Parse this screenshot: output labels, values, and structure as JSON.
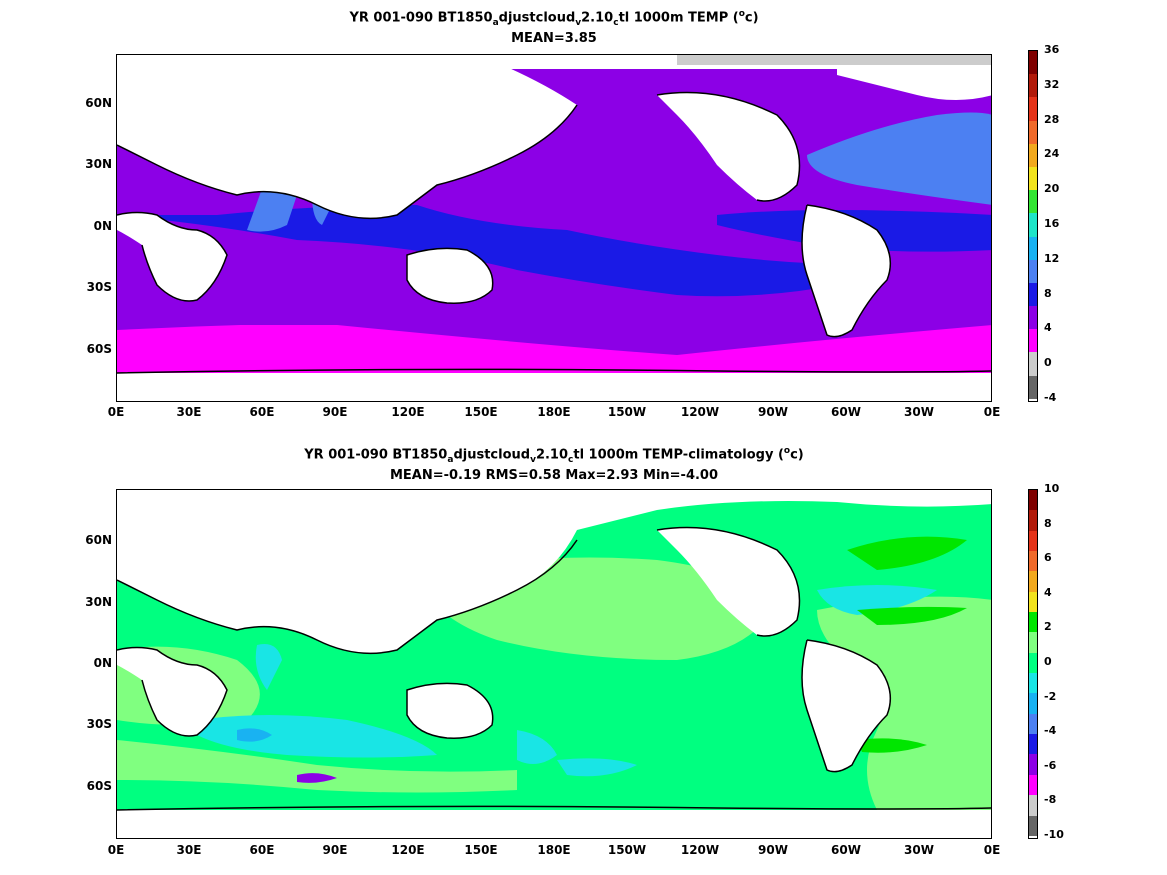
{
  "panel1": {
    "title": "YR 001-090 BT1850",
    "title_sub1": "a",
    "title_mid1": "djustcloud",
    "title_sub2": "v",
    "title_mid2": "2.10",
    "title_sub3": "c",
    "title_rest": "tl 1000m TEMP (",
    "title_sup": "o",
    "title_end": "c)",
    "stats": "MEAN=3.85",
    "colorbar_labels": [
      "36",
      "32",
      "28",
      "24",
      "20",
      "16",
      "12",
      "8",
      "4",
      "0",
      "-4"
    ],
    "colorbar_colors": [
      "#7f0000",
      "#b21a0a",
      "#e53319",
      "#f06a2a",
      "#f2a91e",
      "#f2e31e",
      "#33e533",
      "#1ee5c8",
      "#19b2f2",
      "#4c80f2",
      "#1a1ae6",
      "#8c00e6",
      "#ff00ff",
      "#cccccc",
      "#666666"
    ]
  },
  "panel2": {
    "title": "YR 001-090 BT1850",
    "title_sub1": "a",
    "title_mid1": "djustcloud",
    "title_sub2": "v",
    "title_mid2": "2.10",
    "title_sub3": "c",
    "title_rest": "tl 1000m TEMP-climatology (",
    "title_sup": "o",
    "title_end": "c)",
    "stats": "MEAN=-0.19   RMS=0.58   Max=2.93   Min=-4.00",
    "colorbar_labels": [
      "10",
      "8",
      "6",
      "4",
      "2",
      "0",
      "-2",
      "-4",
      "-6",
      "-8",
      "-10"
    ],
    "colorbar_colors": [
      "#7f0000",
      "#b21a0a",
      "#e53319",
      "#f06a2a",
      "#f2a91e",
      "#f2e31e",
      "#00e600",
      "#80ff80",
      "#00ff80",
      "#19e5e5",
      "#19b2f2",
      "#4c80f2",
      "#1a1ae6",
      "#8c00e6",
      "#ff00ff",
      "#cccccc",
      "#666666"
    ]
  },
  "axes": {
    "yticks": [
      "60N",
      "30N",
      "0N",
      "30S",
      "60S"
    ],
    "xticks": [
      "0E",
      "30E",
      "60E",
      "90E",
      "120E",
      "150E",
      "180E",
      "150W",
      "120W",
      "90W",
      "60W",
      "30W",
      "0E"
    ]
  }
}
